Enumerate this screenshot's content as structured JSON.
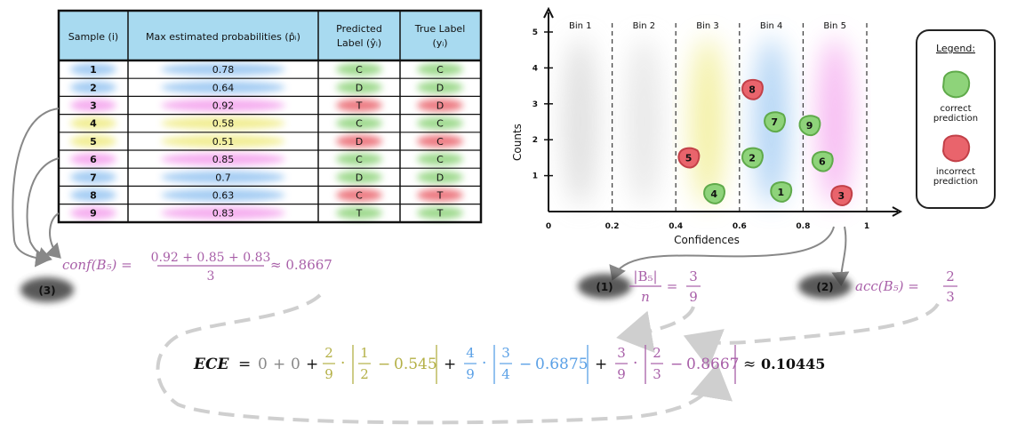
{
  "table": {
    "headers": {
      "sample": "Sample (i)",
      "prob": "Max estimated probabilities (p̂ᵢ)",
      "pred_line1": "Predicted",
      "pred_line2": "Label (ŷᵢ)",
      "true_line1": "True Label",
      "true_line2": "(yᵢ)"
    },
    "rows": [
      {
        "id": "1",
        "prob": "0.78",
        "pred": "C",
        "true": "C",
        "bin": 4
      },
      {
        "id": "2",
        "prob": "0.64",
        "pred": "D",
        "true": "D",
        "bin": 4
      },
      {
        "id": "3",
        "prob": "0.92",
        "pred": "T",
        "true": "D",
        "bin": 5
      },
      {
        "id": "4",
        "prob": "0.58",
        "pred": "C",
        "true": "C",
        "bin": 3
      },
      {
        "id": "5",
        "prob": "0.51",
        "pred": "D",
        "true": "C",
        "bin": 3
      },
      {
        "id": "6",
        "prob": "0.85",
        "pred": "C",
        "true": "C",
        "bin": 5
      },
      {
        "id": "7",
        "prob": "0.7",
        "pred": "D",
        "true": "D",
        "bin": 4
      },
      {
        "id": "8",
        "prob": "0.63",
        "pred": "C",
        "true": "T",
        "bin": 4
      },
      {
        "id": "9",
        "prob": "0.83",
        "pred": "T",
        "true": "T",
        "bin": 5
      }
    ]
  },
  "colors": {
    "bin3": "#f0ec8a",
    "bin4": "#9cc8f2",
    "bin5": "#f4a6ee",
    "header_bg": "#a8daf0",
    "correct": "#8ed37a",
    "incorrect": "#e9646c",
    "formula_purple": "#a85fa8",
    "formula_olive": "#b4b046",
    "formula_blue": "#5aa0e6",
    "formula_gray": "#888888"
  },
  "chart_data": {
    "type": "scatter",
    "xlabel": "Confidences",
    "ylabel": "Counts",
    "xlim": [
      0,
      1
    ],
    "ylim": [
      0,
      5
    ],
    "x_ticks": [
      "0",
      "0.2",
      "0.4",
      "0.6",
      "0.8",
      "1"
    ],
    "y_ticks": [
      "1",
      "2",
      "3",
      "4",
      "5"
    ],
    "bins": [
      {
        "label": "Bin 1",
        "range": [
          0,
          0.2
        ]
      },
      {
        "label": "Bin 2",
        "range": [
          0.2,
          0.4
        ]
      },
      {
        "label": "Bin 3",
        "range": [
          0.4,
          0.6
        ]
      },
      {
        "label": "Bin 4",
        "range": [
          0.6,
          0.8
        ]
      },
      {
        "label": "Bin 5",
        "range": [
          0.8,
          1.0
        ]
      }
    ],
    "points": [
      {
        "id": "1",
        "x": 0.73,
        "y": 0.55,
        "correct": true
      },
      {
        "id": "2",
        "x": 0.64,
        "y": 1.5,
        "correct": true
      },
      {
        "id": "3",
        "x": 0.92,
        "y": 0.45,
        "correct": false
      },
      {
        "id": "4",
        "x": 0.52,
        "y": 0.5,
        "correct": true
      },
      {
        "id": "5",
        "x": 0.44,
        "y": 1.5,
        "correct": false
      },
      {
        "id": "6",
        "x": 0.86,
        "y": 1.4,
        "correct": true
      },
      {
        "id": "7",
        "x": 0.71,
        "y": 2.5,
        "correct": true
      },
      {
        "id": "8",
        "x": 0.64,
        "y": 3.4,
        "correct": false
      },
      {
        "id": "9",
        "x": 0.82,
        "y": 2.4,
        "correct": true
      }
    ],
    "legend": {
      "title": "Legend:",
      "correct_line1": "correct",
      "correct_line2": "prediction",
      "incorrect_line1": "incorrect",
      "incorrect_line2": "prediction"
    }
  },
  "labels": {
    "step1": "(1)",
    "step2": "(2)",
    "step3": "(3)"
  },
  "formulas": {
    "conf_lhs": "conf(B₅) =",
    "conf_num": "0.92 + 0.85 + 0.83",
    "conf_den": "3",
    "conf_rhs": "≈ 0.8667",
    "bsize_num": "|B₅|",
    "bsize_den": "n",
    "bsize_eq": "=",
    "bsize_val_num": "3",
    "bsize_val_den": "9",
    "acc_lhs": "acc(B₅) =",
    "acc_num": "2",
    "acc_den": "3",
    "ece_lhs": "ECE",
    "ece_eq": "=",
    "ece_zero1": "0",
    "ece_plus": "+",
    "ece_zero2": "0",
    "t3_w_num": "2",
    "t3_w_den": "9",
    "t3_a_num": "1",
    "t3_a_den": "2",
    "t3_conf": "0.545",
    "t4_w_num": "4",
    "t4_w_den": "9",
    "t4_a_num": "3",
    "t4_a_den": "4",
    "t4_conf": "0.6875",
    "t5_w_num": "3",
    "t5_w_den": "9",
    "t5_a_num": "2",
    "t5_a_den": "3",
    "t5_conf": "0.8667",
    "dot": "·",
    "minus": "−",
    "approx": "≈",
    "result": "0.10445"
  }
}
